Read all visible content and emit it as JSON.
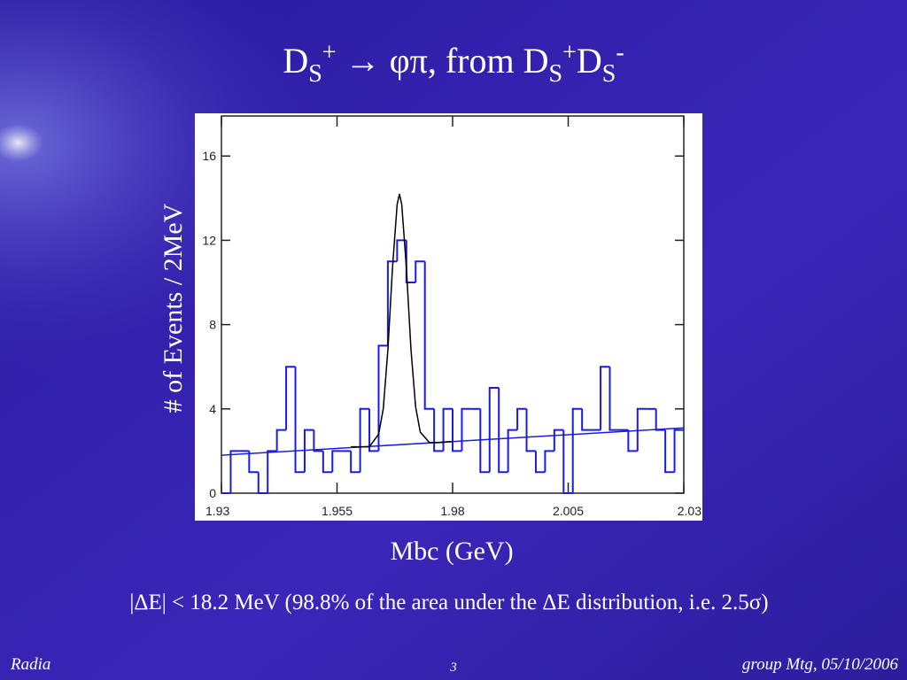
{
  "title_parts": [
    "D",
    "S",
    "+",
    " → φπ, from D",
    "S",
    "+",
    "D",
    "S",
    "-"
  ],
  "note": "|ΔE| < 18.2 MeV (98.8% of the area under the ΔE distribution, i.e. 2.5σ)",
  "footer": {
    "left": "Radia",
    "center": "3",
    "right": "group Mtg, 05/10/2006"
  },
  "chart_data": {
    "type": "histogram",
    "x_label": "Mbc (GeV)",
    "y_label": "# of Events / 2MeV",
    "bins": [
      1.93,
      1.932,
      1.934,
      1.936,
      1.938,
      1.94,
      1.942,
      1.944,
      1.946,
      1.948,
      1.95,
      1.952,
      1.954,
      1.956,
      1.958,
      1.96,
      1.962,
      1.964,
      1.966,
      1.968,
      1.97,
      1.972,
      1.974,
      1.976,
      1.978,
      1.98,
      1.982,
      1.984,
      1.986,
      1.988,
      1.99,
      1.992,
      1.994,
      1.996,
      1.998,
      2.0,
      2.002,
      2.004,
      2.006,
      2.008,
      2.01,
      2.012,
      2.014,
      2.016,
      2.018,
      2.02,
      2.022,
      2.024,
      2.026,
      2.028,
      2.03
    ],
    "counts": [
      0,
      2,
      2,
      1,
      0,
      2,
      3,
      6,
      1,
      3,
      2,
      1,
      2,
      2,
      1,
      4,
      2,
      7,
      11,
      12,
      10,
      11,
      4,
      2,
      4,
      2,
      4,
      4,
      1,
      5,
      1,
      3,
      4,
      2,
      1,
      2,
      3,
      0,
      4,
      3,
      3,
      6,
      3,
      3,
      2,
      4,
      4,
      3,
      1,
      3
    ],
    "color": "#1c1ce0",
    "fits": [
      {
        "color": "#1c1ce0",
        "x": [
          1.93,
          2.03
        ],
        "values": [
          1.8,
          3.1
        ]
      },
      {
        "color": "#000000",
        "x": [
          1.958,
          1.96,
          1.962,
          1.964,
          1.965,
          1.966,
          1.967,
          1.968,
          1.9685,
          1.969,
          1.97,
          1.971,
          1.972,
          1.973,
          1.975,
          1.977,
          1.98
        ],
        "values": [
          2.2,
          2.2,
          2.2,
          2.8,
          4.0,
          6.8,
          10.7,
          13.7,
          14.2,
          13.7,
          10.7,
          6.8,
          4.1,
          2.9,
          2.4,
          2.4,
          2.45
        ]
      }
    ],
    "xlim": [
      1.93,
      2.03
    ],
    "ylim": [
      0,
      17.9
    ],
    "xticks": [
      1.93,
      1.955,
      1.98,
      2.005,
      2.03
    ],
    "yticks": [
      0,
      4,
      8,
      12,
      16
    ]
  }
}
